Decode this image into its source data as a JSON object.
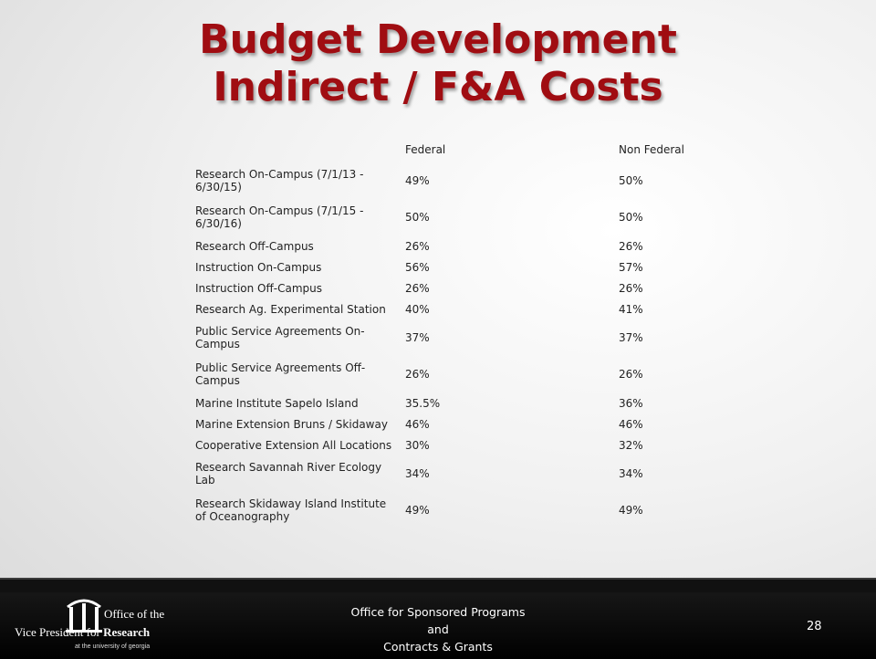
{
  "slide": {
    "title_line1": "Budget Development",
    "title_line2": "Indirect / F&A Costs",
    "table": {
      "headers": [
        "",
        "Federal",
        "Non Federal"
      ],
      "rows": [
        {
          "label": "Research On-Campus (7/1/13 - 6/30/15)",
          "federal": "49%",
          "non_federal": "50%",
          "tall": true
        },
        {
          "label": "Research On-Campus (7/1/15 - 6/30/16)",
          "federal": "50%",
          "non_federal": "50%",
          "tall": true
        },
        {
          "label": "Research Off-Campus",
          "federal": "26%",
          "non_federal": "26%",
          "tall": false
        },
        {
          "label": "Instruction On-Campus",
          "federal": "56%",
          "non_federal": "57%",
          "tall": false
        },
        {
          "label": "Instruction Off-Campus",
          "federal": "26%",
          "non_federal": "26%",
          "tall": false
        },
        {
          "label": "Research Ag. Experimental Station",
          "federal": "40%",
          "non_federal": "41%",
          "tall": false
        },
        {
          "label": "Public Service Agreements On-Campus",
          "federal": "37%",
          "non_federal": "37%",
          "tall": true
        },
        {
          "label": "Public Service Agreements Off-Campus",
          "federal": "26%",
          "non_federal": "26%",
          "tall": true
        },
        {
          "label": "Marine Institute Sapelo Island",
          "federal": "35.5%",
          "non_federal": "36%",
          "tall": false
        },
        {
          "label": "Marine Extension Bruns / Skidaway",
          "federal": "46%",
          "non_federal": "46%",
          "tall": false
        },
        {
          "label": "Cooperative Extension All Locations",
          "federal": "30%",
          "non_federal": "32%",
          "tall": false
        },
        {
          "label": "Research Savannah River Ecology Lab",
          "federal": "34%",
          "non_federal": "34%",
          "tall": true
        },
        {
          "label": "Research Skidaway Island Institute of Oceanography",
          "federal": "49%",
          "non_federal": "49%",
          "tall": true
        }
      ]
    }
  },
  "footer": {
    "logo_line1": "Office of the",
    "logo_line2_a": "Vice President for ",
    "logo_line2_b": "Research",
    "logo_line3": "at the university of georgia",
    "text_line1": "Office for Sponsored Programs",
    "text_line2": "and",
    "text_line3": "Contracts & Grants",
    "page_number": "28"
  },
  "colors": {
    "title": "#a00d12",
    "footer_bg": "#000000"
  }
}
